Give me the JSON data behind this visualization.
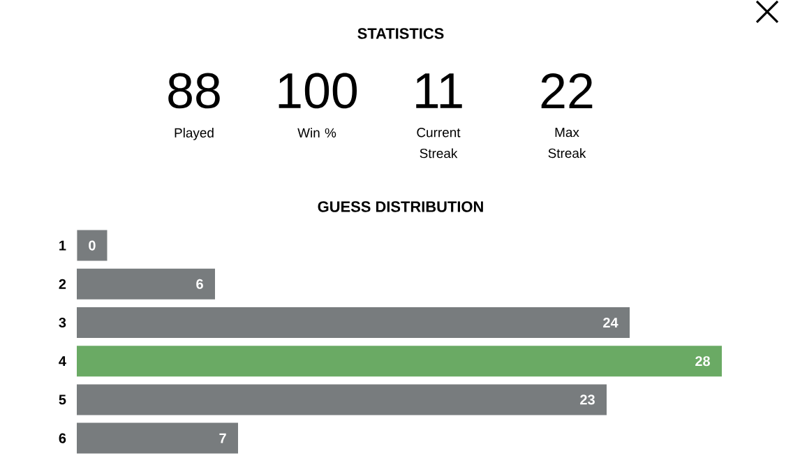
{
  "chart_data": {
    "type": "bar",
    "orientation": "horizontal",
    "title": "STATISTICS",
    "subtitle": "GUESS DISTRIBUTION",
    "annotations": [
      "88",
      "Played",
      "100",
      "Win %",
      "11",
      "Current Streak",
      "22",
      "Max Streak"
    ],
    "categories": [
      "1",
      "2",
      "3",
      "4",
      "5",
      "6"
    ],
    "values": [
      0,
      6,
      24,
      28,
      23,
      7
    ],
    "colors": [
      "#787c7e",
      "#787c7e",
      "#787c7e",
      "#6aaa64",
      "#787c7e",
      "#787c7e"
    ],
    "data_labels": true
  }
}
